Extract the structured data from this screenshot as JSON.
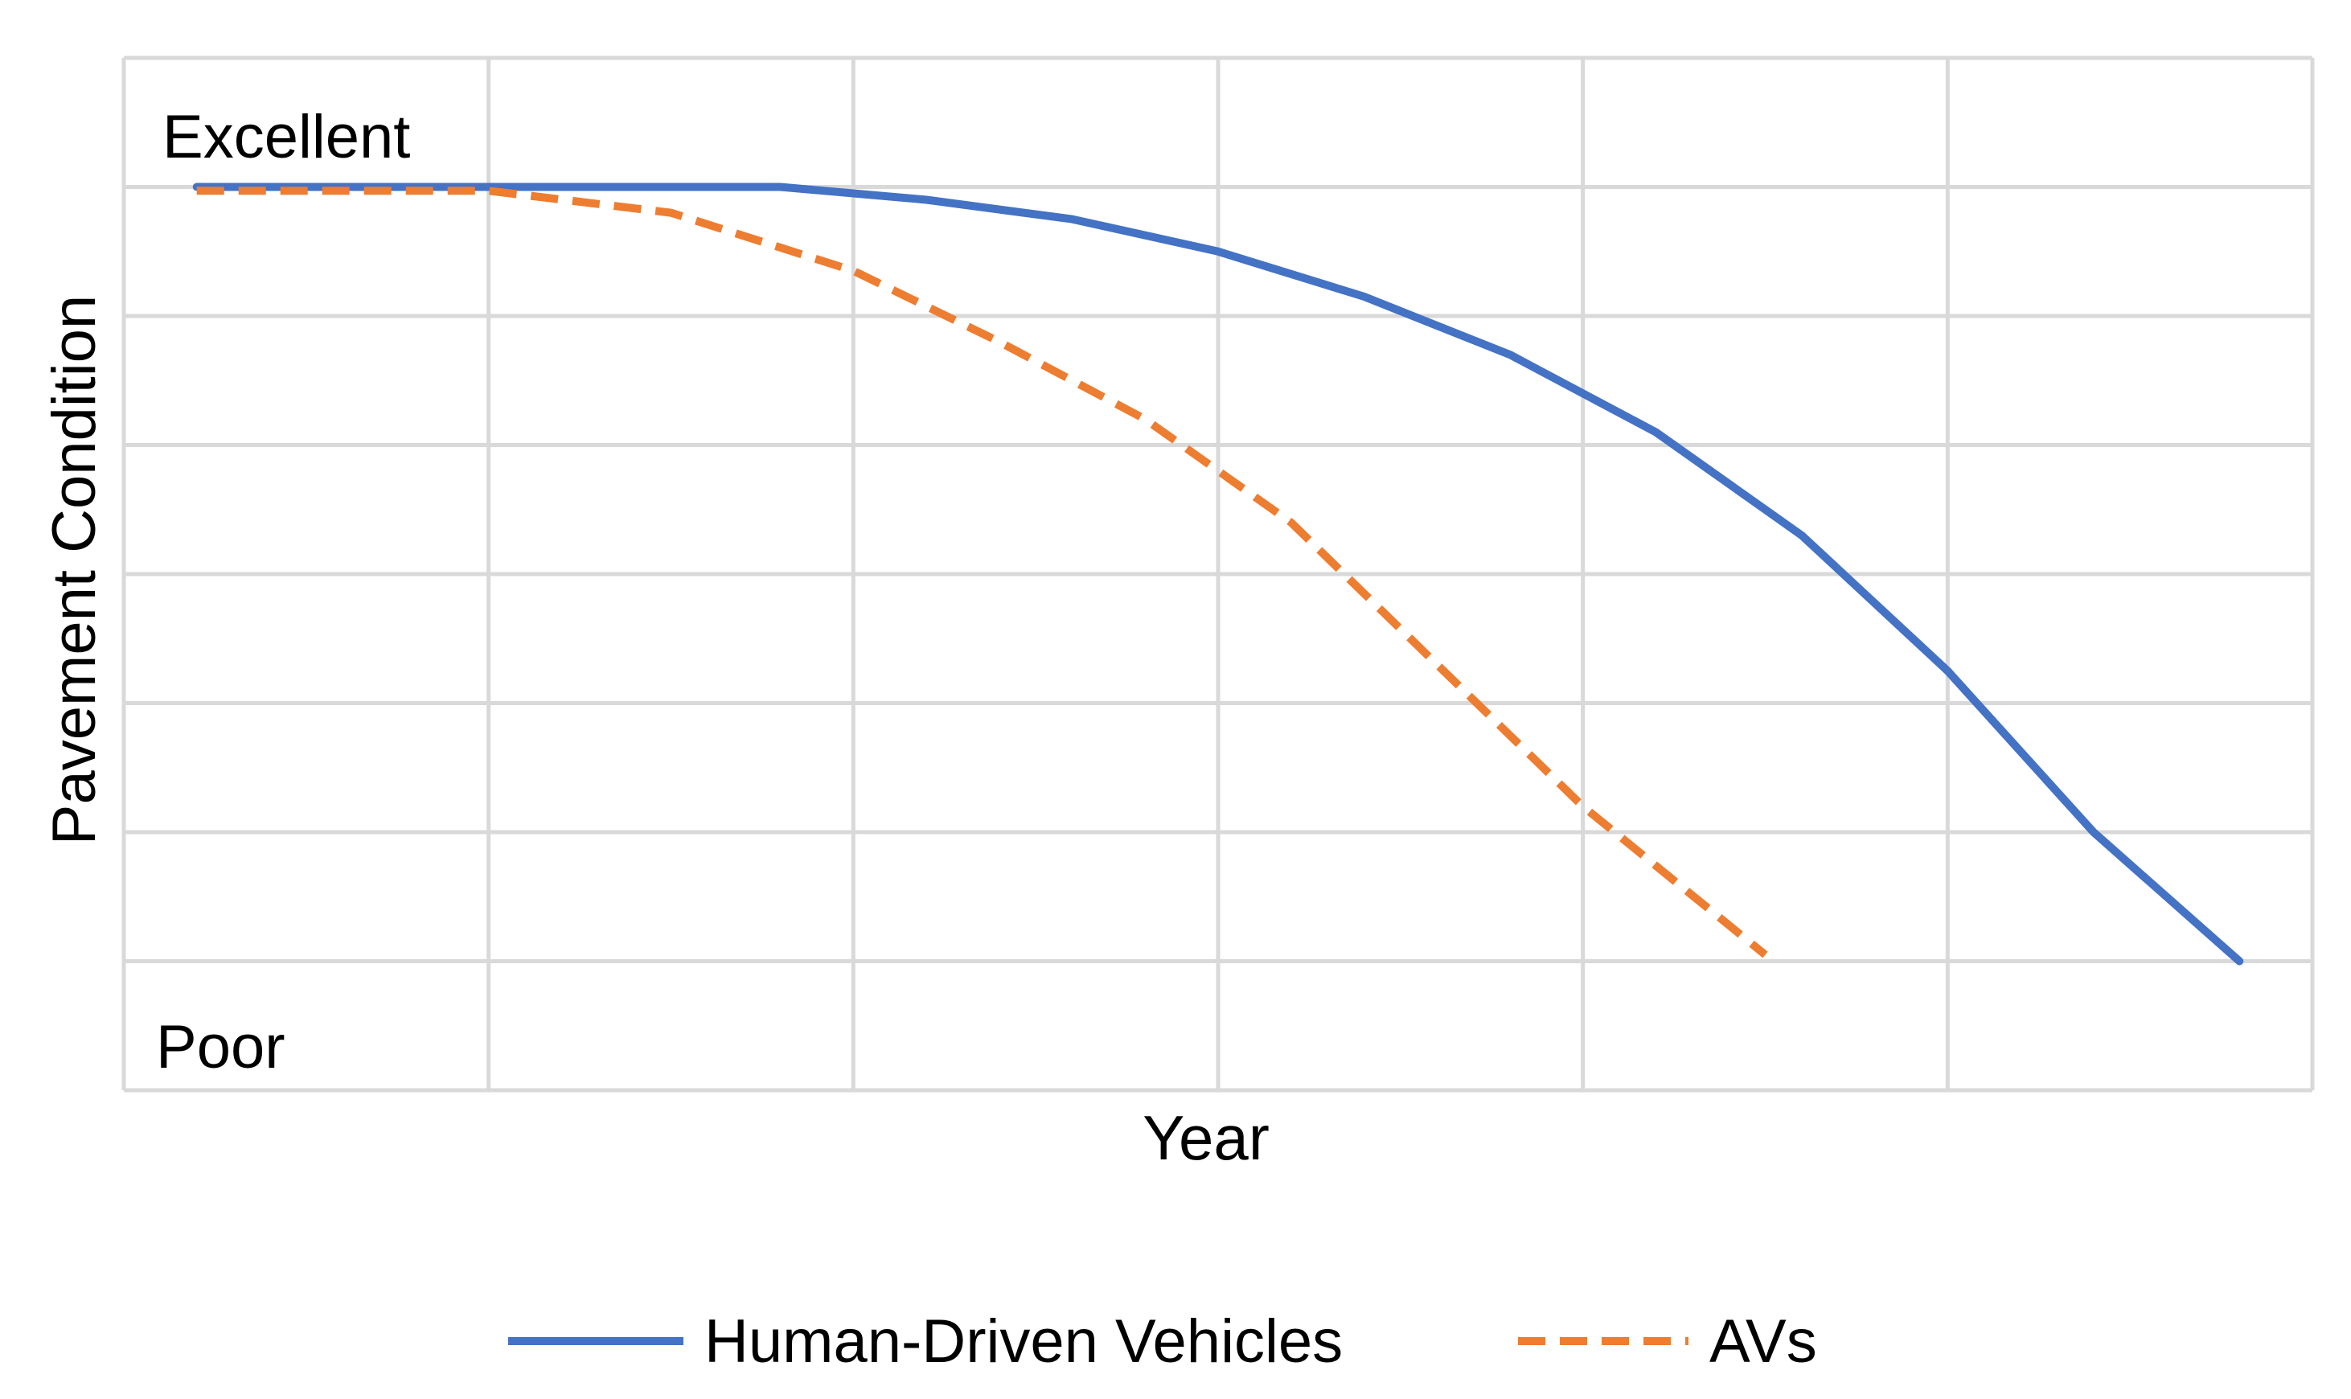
{
  "chart_data": {
    "type": "line",
    "title": "",
    "xlabel": "Year",
    "ylabel": "Pavement Condition",
    "y_top_label": "Excellent",
    "y_bottom_label": "Poor",
    "xlim": [
      0,
      6
    ],
    "ylim": [
      0,
      8
    ],
    "x_gridlines": 6,
    "y_gridlines": 8,
    "grid": true,
    "legend_position": "bottom",
    "series": [
      {
        "name": "Human-Driven Vehicles",
        "color": "#4472C4",
        "style": "solid",
        "x": [
          0.2,
          1.8,
          2.2,
          2.6,
          3.0,
          3.4,
          3.8,
          4.2,
          4.6,
          5.0,
          5.4,
          5.8
        ],
        "y": [
          7.0,
          7.0,
          6.9,
          6.75,
          6.5,
          6.15,
          5.7,
          5.1,
          4.3,
          3.25,
          2.0,
          1.0
        ]
      },
      {
        "name": "AVs",
        "color": "#ED7D31",
        "style": "dashed",
        "x": [
          0.2,
          1.0,
          1.5,
          2.0,
          2.4,
          2.8,
          3.2,
          3.6,
          4.0,
          4.5
        ],
        "y": [
          6.97,
          6.97,
          6.8,
          6.35,
          5.8,
          5.2,
          4.4,
          3.3,
          2.2,
          1.05
        ]
      }
    ]
  }
}
